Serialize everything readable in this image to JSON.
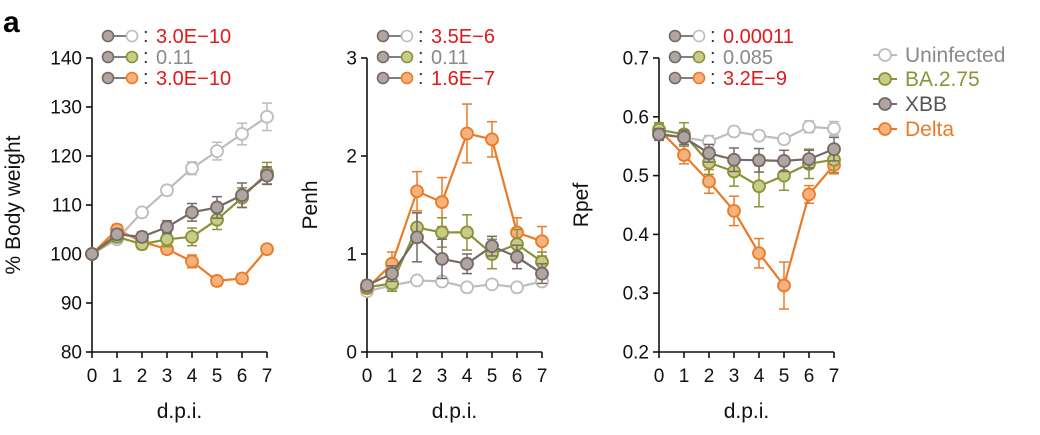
{
  "figure": {
    "panel_label": "a"
  },
  "colors": {
    "Uninfected": {
      "stroke": "#bdbdbd",
      "fill": "#ffffff"
    },
    "BA.2.75": {
      "stroke": "#8c9238",
      "fill": "#c7cc86"
    },
    "XBB": {
      "stroke": "#766a66",
      "fill": "#b1a5a1"
    },
    "Delta": {
      "stroke": "#ea7b27",
      "fill": "#f6b27d"
    },
    "p_significant": "#e01a1a",
    "p_ns": "#8a8a8a"
  },
  "legend": {
    "items": [
      {
        "label": "Uninfected",
        "color": "#8a8a8a"
      },
      {
        "label": "BA.2.75",
        "color": "#8c9238"
      },
      {
        "label": "XBB",
        "color": "#555555"
      },
      {
        "label": "Delta",
        "color": "#ea7b27"
      }
    ]
  },
  "chart_data": [
    {
      "type": "line",
      "xlabel": "d.p.i.",
      "ylabel": "% Body weight",
      "x": [
        0,
        1,
        2,
        3,
        4,
        5,
        6,
        7
      ],
      "xticks": [
        "0",
        "1",
        "2",
        "3",
        "4",
        "5",
        "6",
        "7"
      ],
      "ylim": [
        80,
        140
      ],
      "yticks": [
        "80",
        "90",
        "100",
        "110",
        "120",
        "130",
        "140"
      ],
      "series": [
        {
          "name": "Uninfected",
          "values": [
            100,
            103,
            108.5,
            113,
            117.5,
            121,
            124.5,
            128
          ],
          "errors": [
            0,
            0.5,
            0.8,
            1,
            1.3,
            1.8,
            2.2,
            2.8
          ]
        },
        {
          "name": "BA.2.75",
          "values": [
            100,
            103.5,
            102,
            103,
            103.5,
            107,
            111.5,
            116.5
          ],
          "errors": [
            0,
            1,
            1,
            1.5,
            1.8,
            2,
            2,
            2.2
          ]
        },
        {
          "name": "XBB",
          "values": [
            100,
            104,
            103.5,
            105.5,
            108.5,
            109.5,
            112,
            116
          ],
          "errors": [
            0,
            1,
            1,
            1.3,
            1.8,
            2.2,
            2.5,
            1.8
          ]
        },
        {
          "name": "Delta",
          "values": [
            100,
            105,
            102.5,
            101,
            98.5,
            94.5,
            95,
            101
          ],
          "errors": [
            0,
            1,
            1,
            1,
            1.3,
            1,
            1,
            0.8
          ]
        }
      ],
      "pvalues": [
        {
          "comparison": "XBB vs Uninfected",
          "value": "3.0E−10",
          "significant": true
        },
        {
          "comparison": "XBB vs BA.2.75",
          "value": "0.11",
          "significant": false
        },
        {
          "comparison": "XBB vs Delta",
          "value": "3.0E−10",
          "significant": true
        }
      ]
    },
    {
      "type": "line",
      "xlabel": "d.p.i.",
      "ylabel": "Penh",
      "x": [
        0,
        1,
        2,
        3,
        4,
        5,
        6,
        7
      ],
      "xticks": [
        "0",
        "1",
        "2",
        "3",
        "4",
        "5",
        "6",
        "7"
      ],
      "ylim": [
        0,
        3
      ],
      "yticks": [
        "0",
        "1",
        "2",
        "3"
      ],
      "series": [
        {
          "name": "Uninfected",
          "values": [
            0.62,
            0.68,
            0.73,
            0.72,
            0.66,
            0.69,
            0.66,
            0.72
          ],
          "errors": [
            0.03,
            0.03,
            0.03,
            0.03,
            0.03,
            0.03,
            0.03,
            0.03
          ]
        },
        {
          "name": "BA.2.75",
          "values": [
            0.66,
            0.7,
            1.27,
            1.22,
            1.22,
            1.0,
            1.1,
            0.92
          ],
          "errors": [
            0.05,
            0.08,
            0.15,
            0.15,
            0.18,
            0.15,
            0.15,
            0.1
          ]
        },
        {
          "name": "XBB",
          "values": [
            0.68,
            0.8,
            1.17,
            0.95,
            0.9,
            1.08,
            0.97,
            0.8
          ],
          "errors": [
            0.05,
            0.08,
            0.25,
            0.2,
            0.1,
            0.1,
            0.12,
            0.1
          ]
        },
        {
          "name": "Delta",
          "values": [
            0.65,
            0.9,
            1.64,
            1.53,
            2.23,
            2.17,
            1.22,
            1.13
          ],
          "errors": [
            0.05,
            0.12,
            0.2,
            0.25,
            0.3,
            0.18,
            0.15,
            0.15
          ]
        }
      ],
      "pvalues": [
        {
          "comparison": "XBB vs Uninfected",
          "value": "3.5E−6",
          "significant": true
        },
        {
          "comparison": "XBB vs BA.2.75",
          "value": "0.11",
          "significant": false
        },
        {
          "comparison": "XBB vs Delta",
          "value": "1.6E−7",
          "significant": true
        }
      ]
    },
    {
      "type": "line",
      "xlabel": "d.p.i.",
      "ylabel": "Rpef",
      "x": [
        0,
        1,
        2,
        3,
        4,
        5,
        6,
        7
      ],
      "xticks": [
        "0",
        "1",
        "2",
        "3",
        "4",
        "5",
        "6",
        "7"
      ],
      "ylim": [
        0.2,
        0.7
      ],
      "yticks": [
        "0.2",
        "0.3",
        "0.4",
        "0.5",
        "0.6",
        "0.7"
      ],
      "series": [
        {
          "name": "Uninfected",
          "values": [
            0.572,
            0.565,
            0.558,
            0.575,
            0.568,
            0.562,
            0.583,
            0.58
          ],
          "errors": [
            0.008,
            0.008,
            0.01,
            0.008,
            0.008,
            0.008,
            0.01,
            0.012
          ]
        },
        {
          "name": "BA.2.75",
          "values": [
            0.578,
            0.57,
            0.522,
            0.507,
            0.482,
            0.5,
            0.52,
            0.527
          ],
          "errors": [
            0.012,
            0.02,
            0.02,
            0.025,
            0.035,
            0.025,
            0.025,
            0.022
          ]
        },
        {
          "name": "XBB",
          "values": [
            0.57,
            0.565,
            0.538,
            0.527,
            0.526,
            0.525,
            0.528,
            0.545
          ],
          "errors": [
            0.01,
            0.012,
            0.015,
            0.02,
            0.02,
            0.018,
            0.015,
            0.02
          ]
        },
        {
          "name": "Delta",
          "values": [
            0.578,
            0.535,
            0.49,
            0.44,
            0.368,
            0.313,
            0.468,
            0.518
          ],
          "errors": [
            0.01,
            0.015,
            0.02,
            0.025,
            0.025,
            0.04,
            0.015,
            0.015
          ]
        }
      ],
      "pvalues": [
        {
          "comparison": "XBB vs Uninfected",
          "value": "0.00011",
          "significant": true
        },
        {
          "comparison": "XBB vs BA.2.75",
          "value": "0.085",
          "significant": false
        },
        {
          "comparison": "XBB vs Delta",
          "value": "3.2E−9",
          "significant": true
        }
      ]
    }
  ]
}
